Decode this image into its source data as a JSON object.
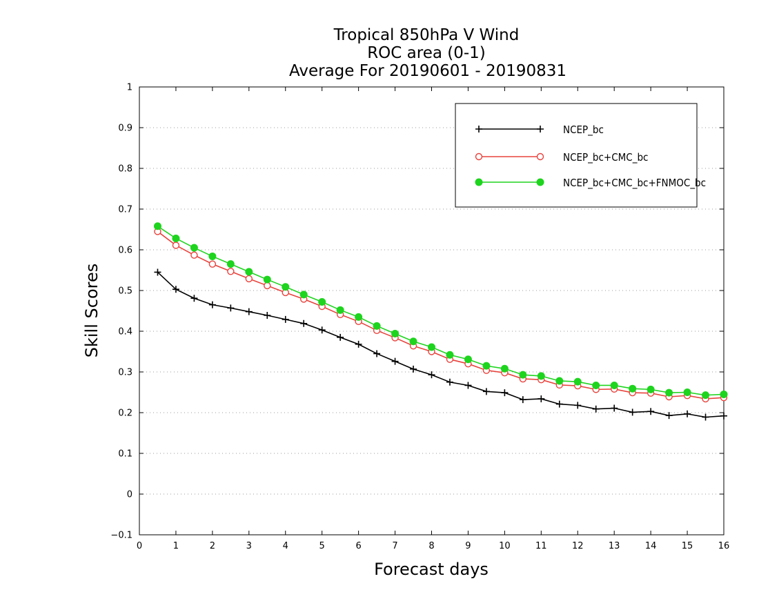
{
  "chart_data": {
    "type": "line",
    "title_lines": [
      "Tropical 850hPa V Wind",
      "ROC area (0-1)",
      "Average For 20190601 - 20190831"
    ],
    "xlabel": "Forecast days",
    "ylabel": "Skill Scores",
    "xlim": [
      0,
      16
    ],
    "ylim": [
      -0.1,
      1
    ],
    "x_ticks": [
      "0",
      "1",
      "2",
      "3",
      "4",
      "5",
      "6",
      "7",
      "8",
      "9",
      "10",
      "11",
      "12",
      "13",
      "14",
      "15",
      "16"
    ],
    "y_ticks": [
      "−0.1",
      "0",
      "0.1",
      "0.2",
      "0.3",
      "0.4",
      "0.5",
      "0.6",
      "0.7",
      "0.8",
      "0.9",
      "1"
    ],
    "grid": "horizontal dotted",
    "legend_position": "top-right",
    "x": [
      0.5,
      1.0,
      1.5,
      2.0,
      2.5,
      3.0,
      3.5,
      4.0,
      4.5,
      5.0,
      5.5,
      6.0,
      6.5,
      7.0,
      7.5,
      8.0,
      8.5,
      9.0,
      9.5,
      10.0,
      10.5,
      11.0,
      11.5,
      12.0,
      12.5,
      13.0,
      13.5,
      14.0,
      14.5,
      15.0,
      15.5,
      16.0
    ],
    "series": [
      {
        "name": "NCEP_bc",
        "color": "#000000",
        "marker": "plus",
        "values": [
          0.545,
          0.503,
          0.481,
          0.465,
          0.457,
          0.448,
          0.439,
          0.429,
          0.419,
          0.403,
          0.385,
          0.368,
          0.345,
          0.326,
          0.307,
          0.293,
          0.275,
          0.267,
          0.252,
          0.249,
          0.232,
          0.234,
          0.221,
          0.218,
          0.209,
          0.211,
          0.201,
          0.203,
          0.193,
          0.197,
          0.189,
          0.192
        ]
      },
      {
        "name": "NCEP_bc+CMC_bc",
        "color": "#e8423c",
        "marker": "open-circle",
        "values": [
          0.645,
          0.611,
          0.587,
          0.565,
          0.547,
          0.529,
          0.512,
          0.495,
          0.479,
          0.461,
          0.441,
          0.424,
          0.402,
          0.384,
          0.364,
          0.35,
          0.331,
          0.32,
          0.304,
          0.298,
          0.283,
          0.281,
          0.268,
          0.266,
          0.257,
          0.258,
          0.249,
          0.248,
          0.239,
          0.242,
          0.234,
          0.237
        ]
      },
      {
        "name": "NCEP_bc+CMC_bc+FNMOC_bc",
        "color": "#1ed41e",
        "marker": "filled-circle",
        "values": [
          0.658,
          0.628,
          0.605,
          0.584,
          0.565,
          0.546,
          0.527,
          0.509,
          0.49,
          0.472,
          0.452,
          0.435,
          0.413,
          0.394,
          0.375,
          0.361,
          0.342,
          0.331,
          0.315,
          0.308,
          0.293,
          0.29,
          0.278,
          0.276,
          0.267,
          0.267,
          0.259,
          0.257,
          0.249,
          0.25,
          0.243,
          0.245
        ]
      }
    ]
  }
}
